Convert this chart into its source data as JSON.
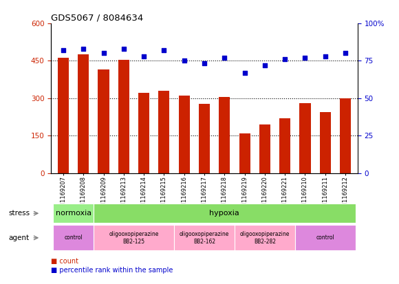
{
  "title": "GDS5067 / 8084634",
  "samples": [
    "GSM1169207",
    "GSM1169208",
    "GSM1169209",
    "GSM1169213",
    "GSM1169214",
    "GSM1169215",
    "GSM1169216",
    "GSM1169217",
    "GSM1169218",
    "GSM1169219",
    "GSM1169220",
    "GSM1169221",
    "GSM1169210",
    "GSM1169211",
    "GSM1169212"
  ],
  "counts": [
    462,
    475,
    415,
    452,
    322,
    330,
    310,
    278,
    305,
    158,
    195,
    220,
    280,
    245,
    300
  ],
  "percentiles": [
    82,
    83,
    80,
    83,
    78,
    82,
    75,
    73,
    77,
    67,
    72,
    76,
    77,
    78,
    80
  ],
  "ylim_left": [
    0,
    600
  ],
  "ylim_right": [
    0,
    100
  ],
  "yticks_left": [
    0,
    150,
    300,
    450,
    600
  ],
  "yticks_right": [
    0,
    25,
    50,
    75,
    100
  ],
  "bar_color": "#CC2200",
  "dot_color": "#0000CC",
  "background_color": "#ffffff",
  "stress_labels": [
    {
      "label": "normoxia",
      "start": 0,
      "end": 2,
      "color": "#99EE88"
    },
    {
      "label": "hypoxia",
      "start": 2,
      "end": 15,
      "color": "#88DD66"
    }
  ],
  "agent_labels": [
    {
      "label": "control",
      "start": 0,
      "end": 2,
      "color": "#DD88DD"
    },
    {
      "label": "oligooxopiperazine\nBB2-125",
      "start": 2,
      "end": 6,
      "color": "#FFAACC"
    },
    {
      "label": "oligooxopiperazine\nBB2-162",
      "start": 6,
      "end": 9,
      "color": "#FFAACC"
    },
    {
      "label": "oligooxopiperazine\nBB2-282",
      "start": 9,
      "end": 12,
      "color": "#FFAACC"
    },
    {
      "label": "control",
      "start": 12,
      "end": 15,
      "color": "#DD88DD"
    }
  ],
  "stress_row_label": "stress",
  "agent_row_label": "agent",
  "legend_count_label": "count",
  "legend_pct_label": "percentile rank within the sample"
}
